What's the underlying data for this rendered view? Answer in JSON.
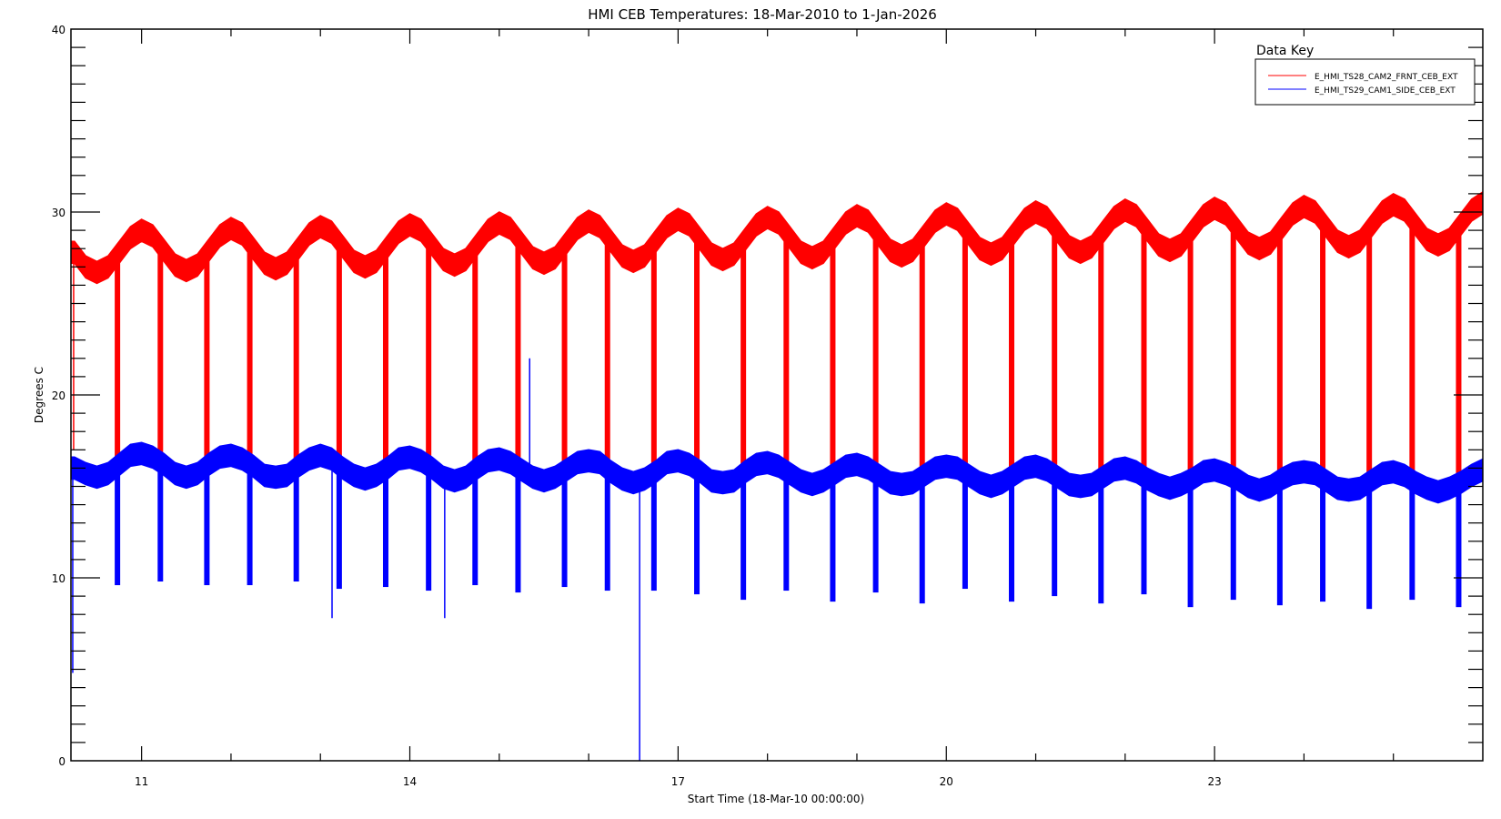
{
  "chart_data": {
    "type": "line",
    "title": "HMI CEB Temperatures: 18-Mar-2010 to 1-Jan-2026",
    "xlabel": "Start Time (18-Mar-10 00:00:00)",
    "ylabel": "Degrees C",
    "xlim": [
      10.21,
      26.0
    ],
    "ylim": [
      0,
      40
    ],
    "x_unit": "year (20xx, decimal)",
    "xticks": [
      11,
      14,
      17,
      20,
      23
    ],
    "xtick_labels": [
      "11",
      "14",
      "17",
      "20",
      "23"
    ],
    "yticks": [
      0,
      10,
      20,
      30,
      40
    ],
    "ytick_labels": [
      "0",
      "10",
      "20",
      "30",
      "40"
    ],
    "legend": {
      "title": "Data Key",
      "placement": "top-right"
    },
    "x_start": 10.25,
    "x_step": 0.125,
    "series": [
      {
        "name": "E_HMI_TS28_CAM2_FRNT_CEB_EXT",
        "color": "#ff0000",
        "band_halfwidth": 0.6,
        "values": [
          27.8,
          27.0,
          26.7,
          27.0,
          27.8,
          28.6,
          29.0,
          28.7,
          27.9,
          27.1,
          26.8,
          27.1,
          27.9,
          28.7,
          29.1,
          28.8,
          28.0,
          27.2,
          26.9,
          27.2,
          28.0,
          28.8,
          29.2,
          28.9,
          28.1,
          27.3,
          27.0,
          27.3,
          28.1,
          28.9,
          29.3,
          29.0,
          28.2,
          27.4,
          27.1,
          27.4,
          28.2,
          29.0,
          29.4,
          29.1,
          28.3,
          27.5,
          27.2,
          27.5,
          28.3,
          29.1,
          29.5,
          29.2,
          28.4,
          27.6,
          27.3,
          27.6,
          28.4,
          29.2,
          29.6,
          29.3,
          28.5,
          27.7,
          27.4,
          27.7,
          28.5,
          29.3,
          29.7,
          29.4,
          28.6,
          27.8,
          27.5,
          27.8,
          28.6,
          29.4,
          29.8,
          29.5,
          28.7,
          27.9,
          27.6,
          27.9,
          28.7,
          29.5,
          29.9,
          29.6,
          28.8,
          28.0,
          27.7,
          28.0,
          28.8,
          29.6,
          30.0,
          29.7,
          28.9,
          28.1,
          27.8,
          28.1,
          28.9,
          29.7,
          30.1,
          29.8,
          29.0,
          28.2,
          27.9,
          28.2,
          29.0,
          29.8,
          30.2,
          29.9,
          29.1,
          28.3,
          28.0,
          28.3,
          29.1,
          29.9,
          30.3,
          30.0,
          29.2,
          28.4,
          28.1,
          28.4,
          29.2,
          30.0,
          30.4,
          30.1,
          29.3,
          28.5,
          28.2,
          28.5,
          29.3,
          30.1,
          30.5
        ],
        "dip_minima": [
          16.5,
          16.8,
          16.4,
          16.6,
          16.3,
          16.5,
          16.2,
          16.4,
          16.1,
          16.0,
          16.2,
          15.9,
          16.1,
          15.8,
          16.0,
          15.7,
          15.9,
          15.6,
          15.9,
          15.6,
          15.8,
          15.5,
          15.8,
          15.5,
          15.7,
          15.5,
          15.6,
          15.4,
          15.6,
          15.4,
          15.5
        ]
      },
      {
        "name": "E_HMI_TS29_CAM1_SIDE_CEB_EXT",
        "color": "#0000ff",
        "band_halfwidth": 0.6,
        "values": [
          16.0,
          15.7,
          15.5,
          15.7,
          16.2,
          16.7,
          16.8,
          16.6,
          16.2,
          15.7,
          15.5,
          15.7,
          16.2,
          16.6,
          16.7,
          16.5,
          16.1,
          15.6,
          15.5,
          15.6,
          16.1,
          16.5,
          16.7,
          16.5,
          16.0,
          15.6,
          15.4,
          15.6,
          16.0,
          16.5,
          16.6,
          16.4,
          16.0,
          15.5,
          15.3,
          15.5,
          16.0,
          16.4,
          16.5,
          16.3,
          15.9,
          15.5,
          15.3,
          15.5,
          15.9,
          16.3,
          16.4,
          16.3,
          15.8,
          15.4,
          15.2,
          15.4,
          15.8,
          16.3,
          16.4,
          16.2,
          15.8,
          15.3,
          15.2,
          15.3,
          15.8,
          16.2,
          16.3,
          16.1,
          15.7,
          15.3,
          15.1,
          15.3,
          15.7,
          16.1,
          16.2,
          16.0,
          15.6,
          15.2,
          15.1,
          15.2,
          15.6,
          16.0,
          16.1,
          16.0,
          15.6,
          15.2,
          15.0,
          15.2,
          15.6,
          16.0,
          16.1,
          15.9,
          15.5,
          15.1,
          15.0,
          15.1,
          15.5,
          15.9,
          16.0,
          15.8,
          15.4,
          15.1,
          14.9,
          15.1,
          15.4,
          15.8,
          15.9,
          15.7,
          15.4,
          15.0,
          14.8,
          15.0,
          15.4,
          15.7,
          15.8,
          15.7,
          15.3,
          14.9,
          14.8,
          14.9,
          15.3,
          15.7,
          15.8,
          15.6,
          15.2,
          14.9,
          14.7,
          14.9,
          15.2,
          15.6,
          15.9
        ],
        "dip_minima": [
          9.6,
          9.8,
          9.6,
          9.6,
          9.8,
          9.4,
          9.5,
          9.3,
          9.6,
          9.2,
          9.5,
          9.3,
          9.3,
          9.1,
          8.8,
          9.3,
          8.7,
          9.2,
          8.6,
          9.4,
          8.7,
          9.0,
          8.6,
          9.1,
          8.4,
          8.8,
          8.5,
          8.7,
          8.3,
          8.8,
          8.4
        ]
      }
    ],
    "dip_times": [
      10.73,
      11.21,
      11.73,
      12.21,
      12.73,
      13.21,
      13.73,
      14.21,
      14.73,
      15.21,
      15.73,
      16.21,
      16.73,
      17.21,
      17.73,
      18.21,
      18.73,
      19.21,
      19.73,
      20.21,
      20.73,
      21.21,
      21.73,
      22.21,
      22.73,
      23.21,
      23.73,
      24.21,
      24.73,
      25.21,
      25.73
    ],
    "spikes": [
      {
        "series": 1,
        "x": 16.57,
        "y": 0.0
      },
      {
        "series": 1,
        "x": 15.34,
        "y": 22.0
      },
      {
        "series": 1,
        "x": 13.13,
        "y": 7.8
      },
      {
        "series": 1,
        "x": 14.39,
        "y": 7.8
      },
      {
        "series": 1,
        "x": 10.23,
        "y": 4.8
      },
      {
        "series": 0,
        "x": 10.24,
        "y": 17.0
      }
    ]
  }
}
